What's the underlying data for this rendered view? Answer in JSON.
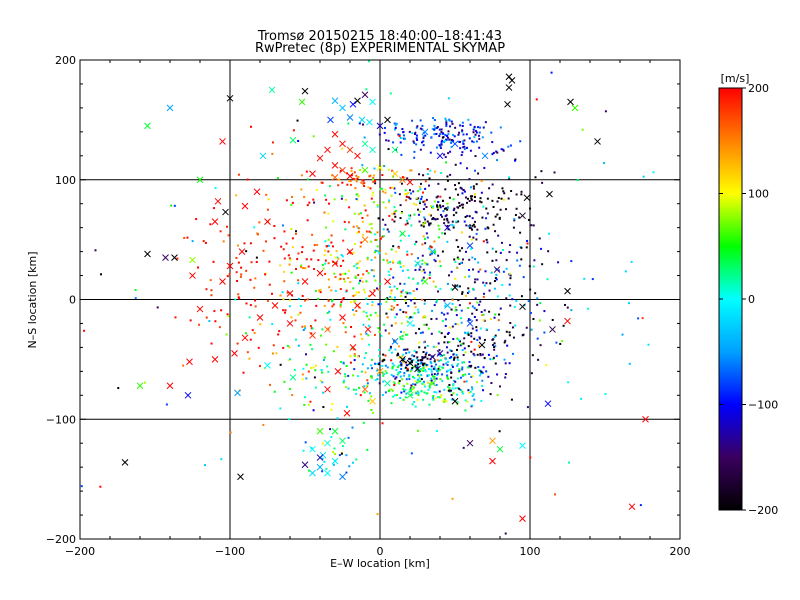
{
  "chart_data": {
    "type": "scatter",
    "title": "Tromsø 20150215  18:40:00–18:41:43",
    "subtitle": "RwPretec (8p) EXPERIMENTAL SKYMAP",
    "xlabel": "E–W location [km]",
    "ylabel": "N–S location [km]",
    "xlim": [
      -200,
      200
    ],
    "ylim": [
      -200,
      200
    ],
    "x_ticks": [
      -200,
      -100,
      0,
      100,
      200
    ],
    "y_ticks": [
      -200,
      -100,
      0,
      100,
      200
    ],
    "x_tick_labels": [
      "−200",
      "−100",
      "0",
      "100",
      "200"
    ],
    "y_tick_labels": [
      "−200",
      "−100",
      "0",
      "100",
      "200"
    ],
    "grid": true,
    "marker_types": [
      "dot",
      "x"
    ],
    "colorbar": {
      "label": "[m/s]",
      "range": [
        -200,
        200
      ],
      "ticks": [
        200,
        100,
        0,
        -100,
        -200
      ],
      "tick_labels": [
        "200",
        "100",
        "0",
        "−100",
        "−200"
      ],
      "colormap": [
        "#000000",
        "#3a0060",
        "#0000ff",
        "#00a0ff",
        "#00ffff",
        "#00ff00",
        "#ffff00",
        "#ff8000",
        "#ff0000"
      ]
    },
    "points": [
      {
        "x": 86,
        "y": 186,
        "v": -200,
        "m": "x"
      },
      {
        "x": 88,
        "y": 183,
        "v": -200,
        "m": "x"
      },
      {
        "x": 86,
        "y": 177,
        "v": -200,
        "m": "x"
      },
      {
        "x": 127,
        "y": 165,
        "v": -200,
        "m": "x"
      },
      {
        "x": 85,
        "y": 163,
        "v": -200,
        "m": "x"
      },
      {
        "x": 145,
        "y": 132,
        "v": -200,
        "m": "x"
      },
      {
        "x": -100,
        "y": 168,
        "v": -200,
        "m": "x"
      },
      {
        "x": -50,
        "y": 174,
        "v": -200,
        "m": "x"
      },
      {
        "x": -10,
        "y": 171,
        "v": -150,
        "m": "x"
      },
      {
        "x": -15,
        "y": 166,
        "v": -200,
        "m": "x"
      },
      {
        "x": -155,
        "y": 38,
        "v": -200,
        "m": "x"
      },
      {
        "x": -143,
        "y": 35,
        "v": -150,
        "m": "x"
      },
      {
        "x": -137,
        "y": 35,
        "v": -200,
        "m": "x"
      },
      {
        "x": -103,
        "y": 73,
        "v": -200,
        "m": "x"
      },
      {
        "x": -170,
        "y": -136,
        "v": -200,
        "m": "x"
      },
      {
        "x": -93,
        "y": -148,
        "v": -200,
        "m": "x"
      },
      {
        "x": 20,
        "y": -53,
        "v": -200,
        "m": "x"
      },
      {
        "x": 15,
        "y": -50,
        "v": -200,
        "m": "x"
      },
      {
        "x": 25,
        "y": -58,
        "v": -180,
        "m": "x"
      },
      {
        "x": 35,
        "y": -48,
        "v": -150,
        "m": "x"
      },
      {
        "x": 40,
        "y": -45,
        "v": -130,
        "m": "x"
      },
      {
        "x": 50,
        "y": -85,
        "v": -200,
        "m": "x"
      },
      {
        "x": 95,
        "y": 70,
        "v": -180,
        "m": "x"
      },
      {
        "x": 98,
        "y": 85,
        "v": -200,
        "m": "x"
      },
      {
        "x": 113,
        "y": 88,
        "v": -200,
        "m": "x"
      },
      {
        "x": 125,
        "y": 7,
        "v": -200,
        "m": "x"
      },
      {
        "x": 112,
        "y": -87,
        "v": -100,
        "m": "x"
      },
      {
        "x": 95,
        "y": -6,
        "v": -200,
        "m": "x"
      },
      {
        "x": 115,
        "y": -25,
        "v": -160,
        "m": "x"
      },
      {
        "x": 68,
        "y": -38,
        "v": -200,
        "m": "x"
      },
      {
        "x": 78,
        "y": 25,
        "v": -150,
        "m": "x"
      },
      {
        "x": 50,
        "y": 10,
        "v": -200,
        "m": "x"
      },
      {
        "x": -30,
        "y": 166,
        "v": -40,
        "m": "x"
      },
      {
        "x": -25,
        "y": 160,
        "v": -30,
        "m": "x"
      },
      {
        "x": -18,
        "y": 163,
        "v": -100,
        "m": "x"
      },
      {
        "x": -5,
        "y": 165,
        "v": 0,
        "m": "x"
      },
      {
        "x": -33,
        "y": 150,
        "v": -80,
        "m": "x"
      },
      {
        "x": -20,
        "y": 152,
        "v": -60,
        "m": "x"
      },
      {
        "x": -12,
        "y": 150,
        "v": -20,
        "m": "x"
      },
      {
        "x": -7,
        "y": 148,
        "v": -10,
        "m": "x"
      },
      {
        "x": 0,
        "y": 145,
        "v": -120,
        "m": "x"
      },
      {
        "x": 5,
        "y": 150,
        "v": -200,
        "m": "x"
      },
      {
        "x": -30,
        "y": 138,
        "v": 200,
        "m": "x"
      },
      {
        "x": -25,
        "y": 130,
        "v": 200,
        "m": "x"
      },
      {
        "x": -20,
        "y": 125,
        "v": 180,
        "m": "x"
      },
      {
        "x": -15,
        "y": 120,
        "v": 200,
        "m": "x"
      },
      {
        "x": -10,
        "y": 130,
        "v": 20,
        "m": "x"
      },
      {
        "x": -5,
        "y": 125,
        "v": 10,
        "m": "x"
      },
      {
        "x": -35,
        "y": 125,
        "v": 200,
        "m": "x"
      },
      {
        "x": -40,
        "y": 118,
        "v": 200,
        "m": "x"
      },
      {
        "x": -30,
        "y": 112,
        "v": 200,
        "m": "x"
      },
      {
        "x": -25,
        "y": 108,
        "v": 180,
        "m": "x"
      },
      {
        "x": -20,
        "y": 103,
        "v": 200,
        "m": "x"
      },
      {
        "x": -30,
        "y": 102,
        "v": 160,
        "m": "x"
      },
      {
        "x": -45,
        "y": 105,
        "v": 200,
        "m": "x"
      },
      {
        "x": -10,
        "y": 108,
        "v": 60,
        "m": "x"
      },
      {
        "x": 0,
        "y": 110,
        "v": 100,
        "m": "x"
      },
      {
        "x": 10,
        "y": 105,
        "v": 120,
        "m": "x"
      },
      {
        "x": 15,
        "y": 100,
        "v": 150,
        "m": "x"
      },
      {
        "x": 20,
        "y": 98,
        "v": 200,
        "m": "x"
      },
      {
        "x": -52,
        "y": 165,
        "v": 60,
        "m": "x"
      },
      {
        "x": -58,
        "y": 133,
        "v": 30,
        "m": "x"
      },
      {
        "x": -72,
        "y": 175,
        "v": 20,
        "m": "x"
      },
      {
        "x": -78,
        "y": 120,
        "v": -20,
        "m": "x"
      },
      {
        "x": -105,
        "y": 132,
        "v": 200,
        "m": "x"
      },
      {
        "x": -108,
        "y": 82,
        "v": 200,
        "m": "x"
      },
      {
        "x": -120,
        "y": 100,
        "v": 50,
        "m": "x"
      },
      {
        "x": -125,
        "y": 33,
        "v": 80,
        "m": "x"
      },
      {
        "x": -155,
        "y": 145,
        "v": 40,
        "m": "x"
      },
      {
        "x": -140,
        "y": 160,
        "v": -50,
        "m": "x"
      },
      {
        "x": -90,
        "y": 78,
        "v": 200,
        "m": "x"
      },
      {
        "x": -82,
        "y": 90,
        "v": 200,
        "m": "x"
      },
      {
        "x": -75,
        "y": 65,
        "v": 200,
        "m": "x"
      },
      {
        "x": -110,
        "y": 65,
        "v": 200,
        "m": "x"
      },
      {
        "x": -125,
        "y": 20,
        "v": 200,
        "m": "x"
      },
      {
        "x": -120,
        "y": -8,
        "v": 200,
        "m": "x"
      },
      {
        "x": -105,
        "y": 15,
        "v": 200,
        "m": "x"
      },
      {
        "x": -100,
        "y": 28,
        "v": 200,
        "m": "x"
      },
      {
        "x": -92,
        "y": 40,
        "v": 200,
        "m": "x"
      },
      {
        "x": -140,
        "y": -72,
        "v": 200,
        "m": "x"
      },
      {
        "x": -127,
        "y": -52,
        "v": 200,
        "m": "x"
      },
      {
        "x": -110,
        "y": -50,
        "v": 200,
        "m": "x"
      },
      {
        "x": -97,
        "y": -45,
        "v": 200,
        "m": "x"
      },
      {
        "x": -90,
        "y": -32,
        "v": 200,
        "m": "x"
      },
      {
        "x": -80,
        "y": -15,
        "v": 200,
        "m": "x"
      },
      {
        "x": -70,
        "y": -5,
        "v": 200,
        "m": "x"
      },
      {
        "x": -60,
        "y": 5,
        "v": 200,
        "m": "x"
      },
      {
        "x": -50,
        "y": 15,
        "v": 200,
        "m": "x"
      },
      {
        "x": -40,
        "y": 22,
        "v": 200,
        "m": "x"
      },
      {
        "x": -30,
        "y": 30,
        "v": 200,
        "m": "x"
      },
      {
        "x": -20,
        "y": 40,
        "v": 200,
        "m": "x"
      },
      {
        "x": -10,
        "y": 50,
        "v": 150,
        "m": "x"
      },
      {
        "x": -60,
        "y": -20,
        "v": 200,
        "m": "x"
      },
      {
        "x": -45,
        "y": -30,
        "v": 180,
        "m": "x"
      },
      {
        "x": -35,
        "y": -25,
        "v": 160,
        "m": "x"
      },
      {
        "x": -25,
        "y": -15,
        "v": 200,
        "m": "x"
      },
      {
        "x": -15,
        "y": -5,
        "v": 200,
        "m": "x"
      },
      {
        "x": -5,
        "y": 5,
        "v": 200,
        "m": "x"
      },
      {
        "x": 5,
        "y": 15,
        "v": 200,
        "m": "x"
      },
      {
        "x": -22,
        "y": -95,
        "v": 200,
        "m": "x"
      },
      {
        "x": -35,
        "y": -75,
        "v": 200,
        "m": "x"
      },
      {
        "x": -28,
        "y": -60,
        "v": 200,
        "m": "x"
      },
      {
        "x": -18,
        "y": -40,
        "v": 200,
        "m": "x"
      },
      {
        "x": -8,
        "y": -25,
        "v": 200,
        "m": "x"
      },
      {
        "x": -75,
        "y": -55,
        "v": 0,
        "m": "x"
      },
      {
        "x": -58,
        "y": -65,
        "v": 20,
        "m": "x"
      },
      {
        "x": -95,
        "y": -78,
        "v": -50,
        "m": "x"
      },
      {
        "x": -128,
        "y": -80,
        "v": -100,
        "m": "x"
      },
      {
        "x": -160,
        "y": -72,
        "v": 60,
        "m": "x"
      },
      {
        "x": -40,
        "y": -110,
        "v": 60,
        "m": "x"
      },
      {
        "x": -30,
        "y": -110,
        "v": 40,
        "m": "x"
      },
      {
        "x": -25,
        "y": -118,
        "v": 30,
        "m": "x"
      },
      {
        "x": -35,
        "y": -120,
        "v": 10,
        "m": "x"
      },
      {
        "x": -45,
        "y": -125,
        "v": 0,
        "m": "x"
      },
      {
        "x": -38,
        "y": -130,
        "v": -20,
        "m": "x"
      },
      {
        "x": -30,
        "y": -135,
        "v": -10,
        "m": "x"
      },
      {
        "x": -40,
        "y": -140,
        "v": -40,
        "m": "x"
      },
      {
        "x": -45,
        "y": -145,
        "v": -20,
        "m": "x"
      },
      {
        "x": -35,
        "y": -145,
        "v": 0,
        "m": "x"
      },
      {
        "x": -25,
        "y": -148,
        "v": -60,
        "m": "x"
      },
      {
        "x": -50,
        "y": -138,
        "v": -140,
        "m": "x"
      },
      {
        "x": -40,
        "y": -132,
        "v": -120,
        "m": "x"
      },
      {
        "x": 60,
        "y": -120,
        "v": -150,
        "m": "x"
      },
      {
        "x": 75,
        "y": -118,
        "v": 140,
        "m": "x"
      },
      {
        "x": 80,
        "y": -125,
        "v": 40,
        "m": "x"
      },
      {
        "x": 95,
        "y": -122,
        "v": 0,
        "m": "x"
      },
      {
        "x": 75,
        "y": -135,
        "v": 200,
        "m": "x"
      },
      {
        "x": 95,
        "y": -183,
        "v": 200,
        "m": "x"
      },
      {
        "x": 168,
        "y": -173,
        "v": 200,
        "m": "x"
      },
      {
        "x": 177,
        "y": -100,
        "v": 200,
        "m": "x"
      },
      {
        "x": 125,
        "y": -18,
        "v": 200,
        "m": "x"
      },
      {
        "x": 130,
        "y": 160,
        "v": 60,
        "m": "x"
      },
      {
        "x": 40,
        "y": 120,
        "v": -100,
        "m": "x"
      },
      {
        "x": 50,
        "y": 130,
        "v": -80,
        "m": "x"
      },
      {
        "x": 30,
        "y": 140,
        "v": -60,
        "m": "x"
      },
      {
        "x": 10,
        "y": 125,
        "v": 30,
        "m": "x"
      },
      {
        "x": 70,
        "y": 120,
        "v": -60,
        "m": "x"
      },
      {
        "x": 45,
        "y": 60,
        "v": -120,
        "m": "x"
      },
      {
        "x": 60,
        "y": 45,
        "v": -80,
        "m": "x"
      },
      {
        "x": 35,
        "y": 40,
        "v": -40,
        "m": "x"
      },
      {
        "x": 25,
        "y": 30,
        "v": -20,
        "m": "x"
      },
      {
        "x": 15,
        "y": 55,
        "v": 40,
        "m": "x"
      },
      {
        "x": 30,
        "y": 15,
        "v": 60,
        "m": "x"
      },
      {
        "x": 45,
        "y": -5,
        "v": -40,
        "m": "x"
      },
      {
        "x": 60,
        "y": -20,
        "v": -80,
        "m": "x"
      },
      {
        "x": 20,
        "y": -20,
        "v": 0,
        "m": "x"
      },
      {
        "x": 10,
        "y": -35,
        "v": -60,
        "m": "x"
      },
      {
        "x": 5,
        "y": -70,
        "v": 20,
        "m": "x"
      },
      {
        "x": 20,
        "y": -80,
        "v": 40,
        "m": "x"
      },
      {
        "x": 35,
        "y": -70,
        "v": 60,
        "m": "x"
      },
      {
        "x": -5,
        "y": -85,
        "v": 120,
        "m": "x"
      },
      {
        "x": -10,
        "y": -75,
        "v": 160,
        "m": "x"
      },
      {
        "x": 0,
        "y": -60,
        "v": 140,
        "m": "x"
      }
    ],
    "dot_clusters": [
      {
        "cx": 38,
        "cy": 138,
        "sx": 20,
        "sy": 8,
        "n": 140,
        "vmean": -90,
        "vsd": 40
      },
      {
        "cx": 60,
        "cy": 125,
        "sx": 15,
        "sy": 8,
        "n": 40,
        "vmean": -110,
        "vsd": 30
      },
      {
        "cx": 60,
        "cy": 75,
        "sx": 22,
        "sy": 15,
        "n": 140,
        "vmean": -190,
        "vsd": 25
      },
      {
        "cx": 30,
        "cy": 80,
        "sx": 15,
        "sy": 12,
        "n": 60,
        "vmean": -150,
        "vsd": 40
      },
      {
        "cx": 5,
        "cy": 90,
        "sx": 20,
        "sy": 12,
        "n": 70,
        "vmean": 120,
        "vsd": 50
      },
      {
        "cx": -20,
        "cy": 100,
        "sx": 12,
        "sy": 6,
        "n": 30,
        "vmean": 170,
        "vsd": 30
      },
      {
        "cx": 30,
        "cy": -60,
        "sx": 22,
        "sy": 8,
        "n": 220,
        "vmean": -20,
        "vsd": 60
      },
      {
        "cx": 35,
        "cy": -78,
        "sx": 20,
        "sy": 6,
        "n": 90,
        "vmean": 40,
        "vsd": 40
      },
      {
        "cx": 20,
        "cy": -50,
        "sx": 10,
        "sy": 5,
        "n": 40,
        "vmean": -180,
        "vsd": 20
      },
      {
        "cx": 60,
        "cy": -30,
        "sx": 25,
        "sy": 30,
        "n": 160,
        "vmean": -150,
        "vsd": 60
      },
      {
        "cx": 70,
        "cy": 20,
        "sx": 25,
        "sy": 35,
        "n": 140,
        "vmean": -120,
        "vsd": 70
      },
      {
        "cx": 25,
        "cy": 10,
        "sx": 25,
        "sy": 40,
        "n": 260,
        "vmean": 20,
        "vsd": 80
      },
      {
        "cx": -20,
        "cy": 20,
        "sx": 25,
        "sy": 40,
        "n": 220,
        "vmean": 110,
        "vsd": 80
      },
      {
        "cx": -70,
        "cy": 20,
        "sx": 30,
        "sy": 40,
        "n": 140,
        "vmean": 190,
        "vsd": 30
      },
      {
        "cx": -40,
        "cy": -60,
        "sx": 20,
        "sy": 30,
        "n": 70,
        "vmean": 40,
        "vsd": 80
      },
      {
        "cx": -30,
        "cy": -130,
        "sx": 10,
        "sy": 12,
        "n": 25,
        "vmean": 0,
        "vsd": 50
      },
      {
        "cx": 0,
        "cy": 0,
        "sx": 110,
        "sy": 110,
        "n": 200,
        "vmean": 0,
        "vsd": 130
      }
    ]
  }
}
